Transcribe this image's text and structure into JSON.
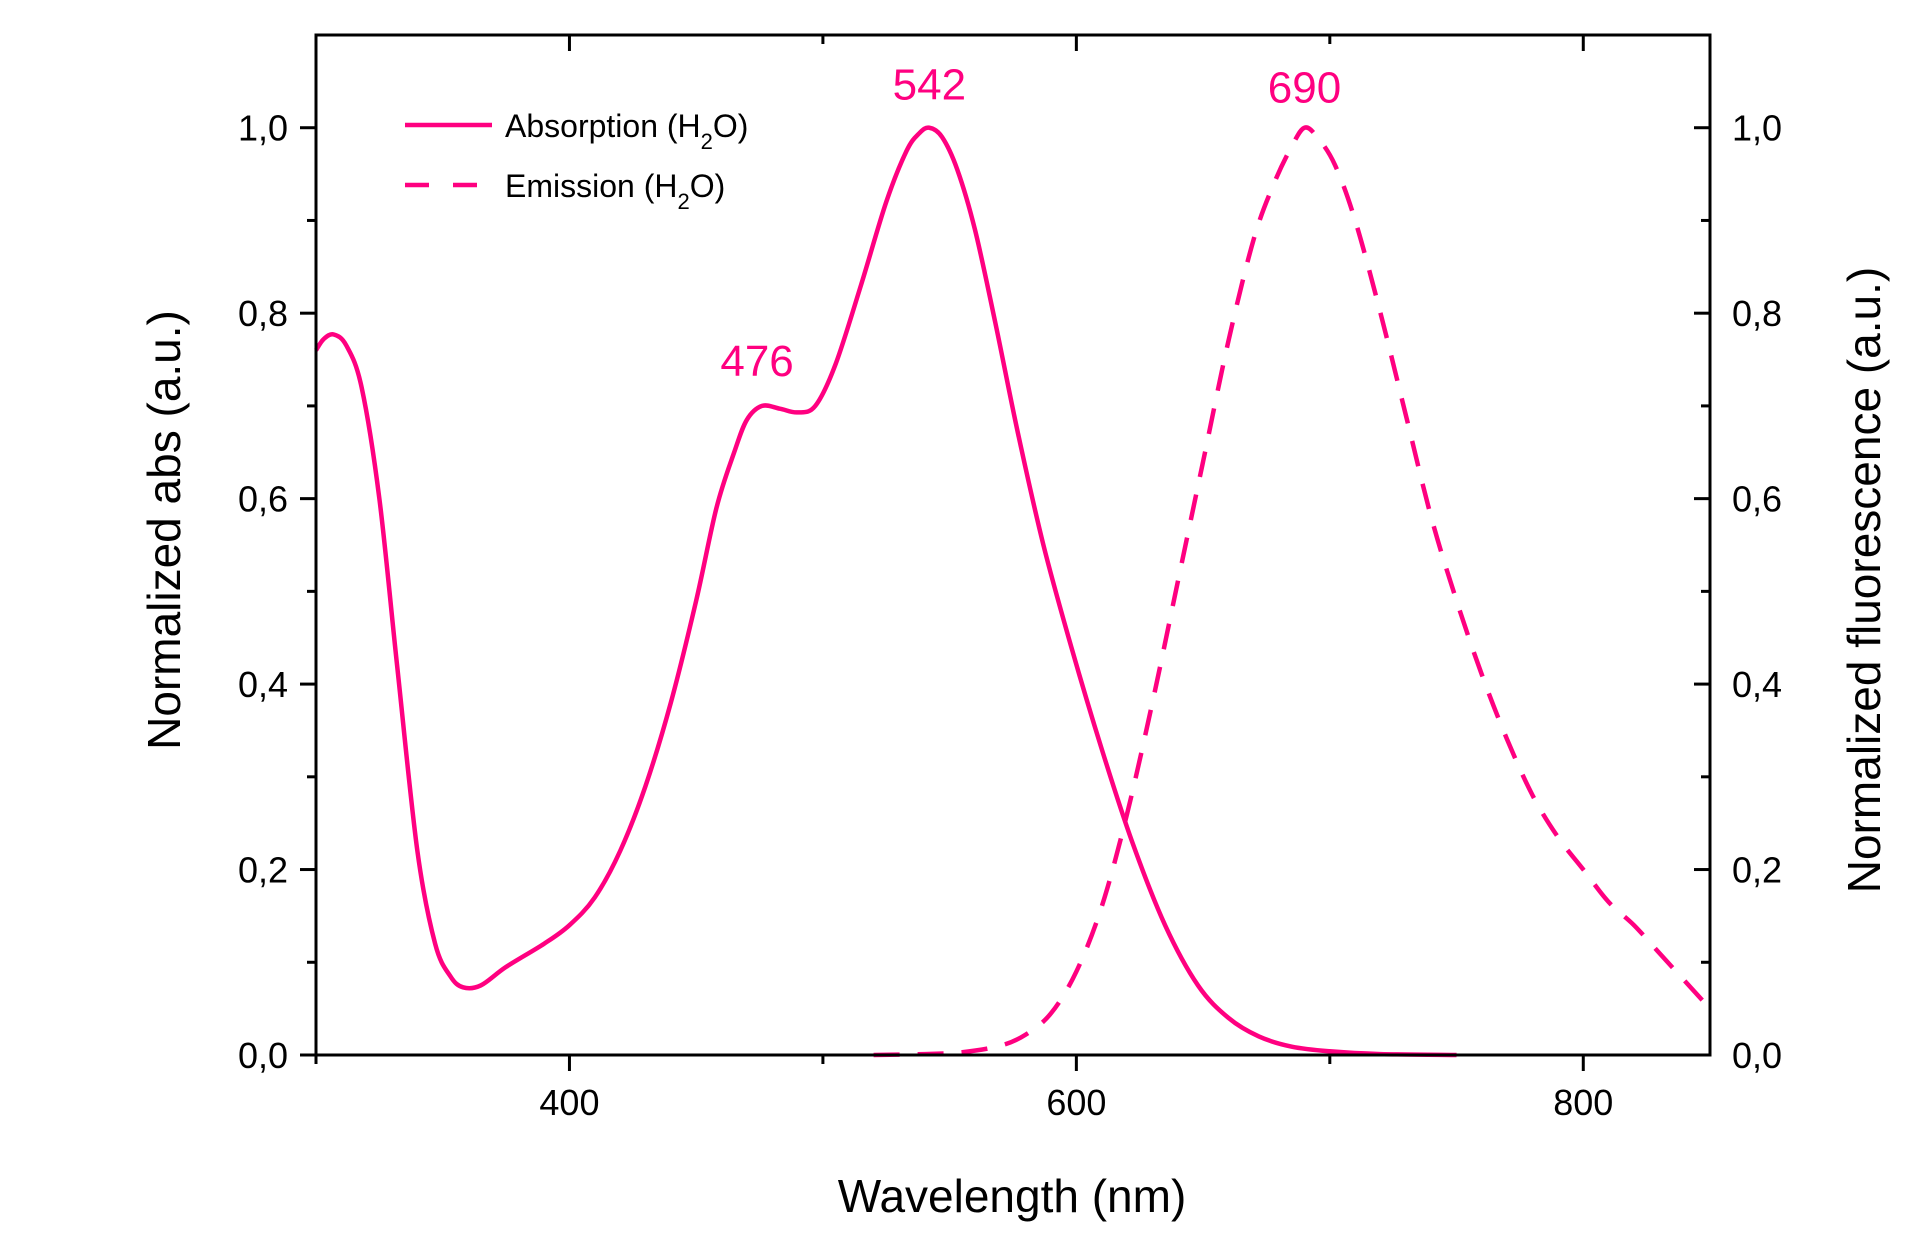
{
  "chart_data": {
    "type": "line",
    "title": "",
    "xlabel": "Wavelength (nm)",
    "ylabel": "Normalized abs (a.u.)",
    "y2label": "Normalized fluorescence (a.u.)",
    "xlim": [
      300,
      850
    ],
    "ylim": [
      0,
      1.1
    ],
    "y2lim": [
      0,
      1.1
    ],
    "grid": false,
    "legend_position": "top-left",
    "x_ticks": [
      {
        "value": 400,
        "label": "400"
      },
      {
        "value": 600,
        "label": "600"
      },
      {
        "value": 800,
        "label": "800"
      }
    ],
    "x_minor_ticks": [
      300,
      500,
      700
    ],
    "y_ticks": [
      {
        "value": 0.0,
        "label": "0,0"
      },
      {
        "value": 0.2,
        "label": "0,2"
      },
      {
        "value": 0.4,
        "label": "0,4"
      },
      {
        "value": 0.6,
        "label": "0,6"
      },
      {
        "value": 0.8,
        "label": "0,8"
      },
      {
        "value": 1.0,
        "label": "1,0"
      }
    ],
    "y_minor_ticks": [
      0.1,
      0.3,
      0.5,
      0.7,
      0.9
    ],
    "series": [
      {
        "name": "Absorption (H2O)",
        "legend_main": "Absorption (H",
        "legend_sub": "2",
        "legend_tail": "O)",
        "style": "solid",
        "color": "#ff0080",
        "axis": "left",
        "x": [
          300,
          303,
          307,
          312,
          318,
          325,
          332,
          340,
          347,
          353,
          358,
          365,
          375,
          390,
          400,
          410,
          420,
          430,
          440,
          450,
          458,
          465,
          470,
          476,
          483,
          490,
          497,
          505,
          515,
          525,
          533,
          538,
          542,
          547,
          553,
          560,
          568,
          577,
          587,
          598,
          610,
          622,
          635,
          648,
          660,
          672,
          685,
          700,
          720,
          750
        ],
        "y": [
          0.76,
          0.772,
          0.777,
          0.765,
          0.72,
          0.6,
          0.42,
          0.22,
          0.12,
          0.085,
          0.073,
          0.075,
          0.095,
          0.12,
          0.14,
          0.17,
          0.22,
          0.29,
          0.38,
          0.49,
          0.59,
          0.65,
          0.685,
          0.7,
          0.697,
          0.693,
          0.7,
          0.745,
          0.83,
          0.92,
          0.975,
          0.994,
          1.0,
          0.99,
          0.955,
          0.89,
          0.79,
          0.67,
          0.55,
          0.44,
          0.33,
          0.23,
          0.14,
          0.075,
          0.04,
          0.02,
          0.009,
          0.004,
          0.001,
          0.0
        ]
      },
      {
        "name": "Emission (H2O)",
        "legend_main": "Emission (H",
        "legend_sub": "2",
        "legend_tail": "O)",
        "style": "dashed",
        "color": "#ff0080",
        "axis": "right",
        "x": [
          520,
          540,
          555,
          570,
          580,
          590,
          600,
          610,
          620,
          630,
          640,
          650,
          660,
          670,
          678,
          685,
          690,
          695,
          702,
          710,
          720,
          730,
          740,
          750,
          760,
          770,
          780,
          790,
          800,
          810,
          820,
          830,
          840,
          850
        ],
        "y": [
          0.0,
          0.001,
          0.003,
          0.01,
          0.022,
          0.045,
          0.09,
          0.16,
          0.26,
          0.38,
          0.51,
          0.64,
          0.77,
          0.88,
          0.94,
          0.98,
          1.0,
          0.99,
          0.96,
          0.9,
          0.8,
          0.69,
          0.58,
          0.49,
          0.41,
          0.34,
          0.28,
          0.235,
          0.2,
          0.165,
          0.14,
          0.11,
          0.08,
          0.05
        ]
      }
    ],
    "annotations": [
      {
        "text": "476",
        "x": 476,
        "y": 0.7
      },
      {
        "text": "542",
        "x": 542,
        "y": 1.0
      },
      {
        "text": "690",
        "x": 690,
        "y": 1.0
      }
    ]
  }
}
